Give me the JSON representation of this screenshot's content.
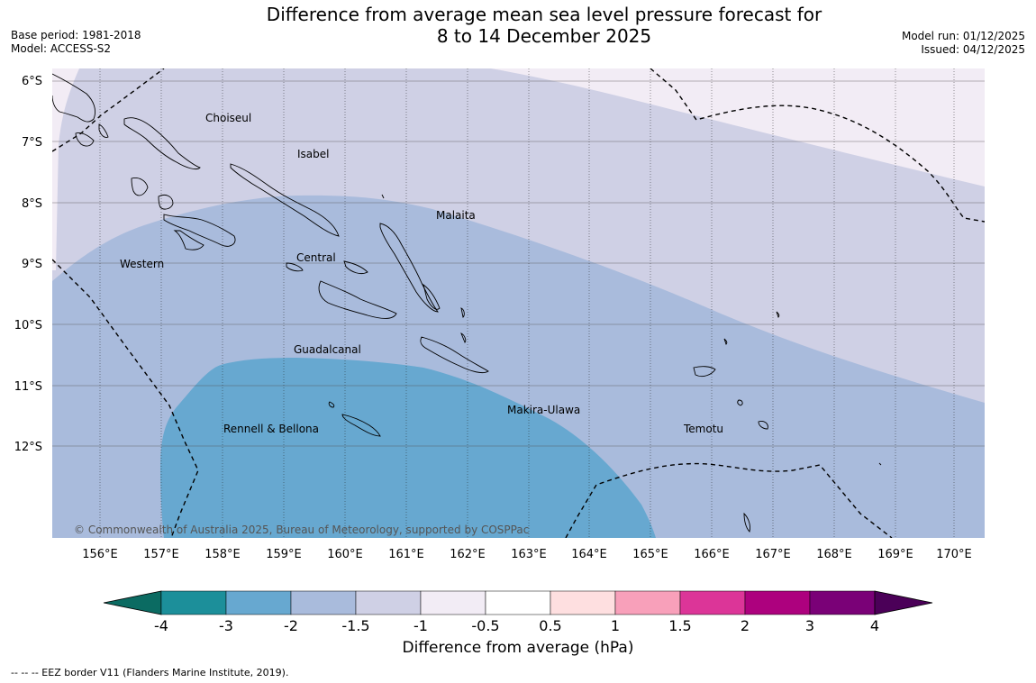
{
  "header": {
    "title_line1": "Difference from average mean sea level pressure forecast for",
    "title_line2": "8 to 14 December 2025",
    "base_period": "Base period: 1981-2018",
    "model": "Model: ACCESS-S2",
    "model_run": "Model run: 01/12/2025",
    "issued": "Issued: 04/12/2025"
  },
  "map": {
    "lat_labels": [
      "6°S",
      "7°S",
      "8°S",
      "9°S",
      "10°S",
      "11°S",
      "12°S"
    ],
    "lon_labels": [
      "156°E",
      "157°E",
      "158°E",
      "159°E",
      "160°E",
      "161°E",
      "162°E",
      "163°E",
      "164°E",
      "165°E",
      "166°E",
      "167°E",
      "168°E",
      "169°E",
      "170°E"
    ],
    "places": [
      {
        "name": "Choiseul"
      },
      {
        "name": "Isabel"
      },
      {
        "name": "Malaita"
      },
      {
        "name": "Western"
      },
      {
        "name": "Central"
      },
      {
        "name": "Guadalcanal"
      },
      {
        "name": "Makira-Ulawa"
      },
      {
        "name": "Rennell & Bellona"
      },
      {
        "name": "Temotu"
      }
    ],
    "copyright": "© Commonwealth of Australia 2025, Bureau of Meteorology, supported by COSPPac",
    "colors": {
      "band_-1_-0.5": "#f2ecf5",
      "band_-1.5_-1": "#cfd0e5",
      "band_-2_-1.5": "#a9bbdc",
      "band_-3_-2": "#67a8d0"
    }
  },
  "colorbar": {
    "title": "Difference from average (hPa)",
    "ticks": [
      "-4",
      "-3",
      "-2",
      "-1.5",
      "-1",
      "-0.5",
      "0.5",
      "1",
      "1.5",
      "2",
      "3",
      "4"
    ],
    "segments": [
      "#1c8f9a",
      "#67a8d0",
      "#a9bbdc",
      "#cfd0e5",
      "#f2ecf5",
      "#ffffff",
      "#fedfe0",
      "#f8a0ba",
      "#dc3598",
      "#ad017e",
      "#7a0177"
    ],
    "low_extend": "#0b6b62",
    "high_extend": "#4b0058"
  },
  "footer": {
    "legend": "--  --  -- EEZ border V11 (Flanders Marine Institute, 2019)."
  }
}
